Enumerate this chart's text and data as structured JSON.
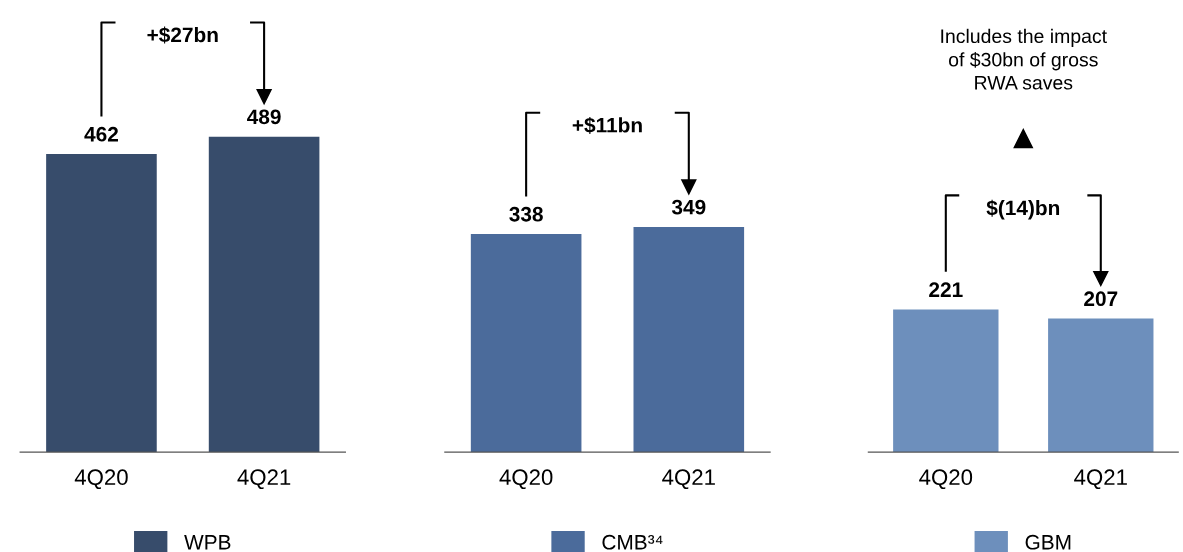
{
  "chart_data": [
    {
      "type": "bar",
      "categories": [
        "4Q20",
        "4Q21"
      ],
      "data_labels": true,
      "legend": "bottom",
      "tick_labels": "x",
      "series": [
        {
          "name": "WPB",
          "color": "#374c6b",
          "values": [
            462,
            489
          ]
        }
      ],
      "annotations": [
        "+$27bn"
      ]
    },
    {
      "type": "bar",
      "categories": [
        "4Q20",
        "4Q21"
      ],
      "data_labels": true,
      "legend": "bottom",
      "tick_labels": "x",
      "series": [
        {
          "name": "CMB³⁴",
          "color": "#4b6b9b",
          "values": [
            338,
            349
          ]
        }
      ],
      "annotations": [
        "+$11bn"
      ]
    },
    {
      "type": "bar",
      "categories": [
        "4Q20",
        "4Q21"
      ],
      "data_labels": true,
      "legend": "bottom",
      "tick_labels": "x",
      "series": [
        {
          "name": "GBM",
          "color": "#6d8fbc",
          "values": [
            221,
            207
          ]
        }
      ],
      "annotations": [
        "$(14)bn",
        "Includes the impact\nof $30bn of gross\nRWA saves"
      ]
    }
  ]
}
